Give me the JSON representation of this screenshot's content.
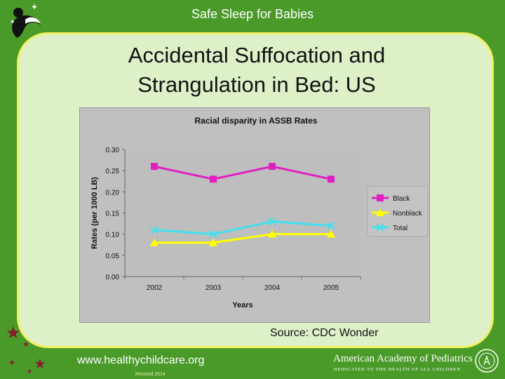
{
  "header": {
    "title": "Safe Sleep for Babies"
  },
  "slide": {
    "title_line1": "Accidental Suffocation and",
    "title_line2": "Strangulation in Bed: US",
    "source": "Source: CDC Wonder"
  },
  "footer": {
    "url": "www.healthychildcare.org",
    "revised": "Revised 2014",
    "org_name": "American Academy of Pediatrics",
    "org_tagline": "DEDICATED TO THE HEALTH OF ALL CHILDREN"
  },
  "colors": {
    "background": "#4a9a2a",
    "panel": "#ddf0c8",
    "panel_border": "#f0f060",
    "black_series": "#e020c0",
    "nonblack_series": "#ffff00",
    "total_series": "#40e0f0"
  },
  "icons": [
    "mother-baby-logo-icon",
    "star-icon",
    "aap-seal-icon"
  ],
  "chart_data": {
    "type": "line",
    "title": "Racial disparity in ASSB Rates",
    "xlabel": "Years",
    "ylabel": "Rates (per 1000 LB)",
    "categories": [
      "2002",
      "2003",
      "2004",
      "2005"
    ],
    "ylim": [
      0,
      0.3
    ],
    "yticks": [
      "0.30",
      "0.25",
      "0.20",
      "0.15",
      "0.10",
      "0.05",
      "0.00"
    ],
    "grid": false,
    "legend_position": "right",
    "series": [
      {
        "name": "Black",
        "values": [
          0.26,
          0.23,
          0.26,
          0.23
        ],
        "color": "#e020c0",
        "marker": "square"
      },
      {
        "name": "Nonblack",
        "values": [
          0.08,
          0.08,
          0.1,
          0.1
        ],
        "color": "#ffff00",
        "marker": "triangle"
      },
      {
        "name": "Total",
        "values": [
          0.11,
          0.1,
          0.13,
          0.12
        ],
        "color": "#40e0f0",
        "marker": "x"
      }
    ]
  }
}
